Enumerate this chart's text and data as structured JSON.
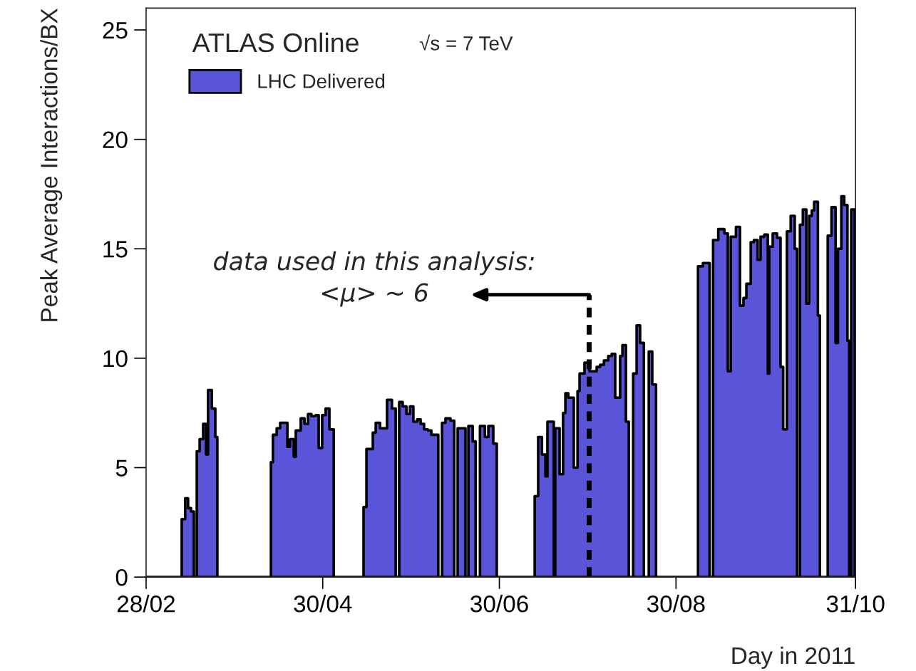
{
  "chart_data": {
    "type": "area",
    "title": "ATLAS Online",
    "subtitle": "√s = 7 TeV",
    "xlabel": "Day in 2011",
    "ylabel": "Peak Average Interactions/BX",
    "x": [
      "2011-02-28",
      "2011-03-12T07:12",
      "2011-03-13T12:00",
      "2011-03-14T12:00",
      "2011-03-15T12:00",
      "2011-03-16T12:00",
      "2011-03-17T12:00",
      "2011-03-18T12:00",
      "2011-03-19T16:48",
      "2011-03-20T16:48",
      "2011-03-21T09:36",
      "2011-03-22T16:48",
      "2011-03-23T21:36",
      "2011-03-24T14:24",
      "2011-04-12T02:24",
      "2011-04-12T19:12",
      "2011-04-14T02:24",
      "2011-04-15T07:12",
      "2011-04-17T19:12",
      "2011-04-18T16:48",
      "2011-04-20",
      "2011-04-20T16:48",
      "2011-04-22T09:36",
      "2011-04-23T16:48",
      "2011-04-24T21:36",
      "2011-04-26T02:24",
      "2011-04-27T14:24",
      "2011-04-28T14:24",
      "2011-04-29T19:12",
      "2011-05-01",
      "2011-05-02T07:12",
      "2011-05-03T19:12",
      "2011-05-14T02:24",
      "2011-05-15T02:24",
      "2011-05-17T07:12",
      "2011-05-18T07:12",
      "2011-05-19T19:12",
      "2011-05-22T04:48",
      "2011-05-23T21:36",
      "2011-05-25T04:48",
      "2011-05-26T09:36",
      "2011-05-27T14:24",
      "2011-05-28T21:36",
      "2011-05-30T02:24",
      "2011-05-31T07:12",
      "2011-06-01T14:24",
      "2011-06-02T19:12",
      "2011-06-04",
      "2011-06-05T07:12",
      "2011-06-06T12:00",
      "2011-06-08T21:36",
      "2011-06-10T04:48",
      "2011-06-11T09:36",
      "2011-06-13T02:24",
      "2011-06-14T09:36",
      "2011-06-15T14:24",
      "2011-06-18T07:12",
      "2011-06-19T07:12",
      "2011-06-20T19:12",
      "2011-06-21T19:12",
      "2011-06-23T07:12",
      "2011-06-25",
      "2011-06-26T04:48",
      "2011-06-27T21:36",
      "2011-06-29T02:24",
      "2011-07-12T04:48",
      "2011-07-13T09:36",
      "2011-07-14T16:48",
      "2011-07-15T21:36",
      "2011-07-16T14:24",
      "2011-07-18T19:12",
      "2011-07-19T07:12",
      "2011-07-20T19:12",
      "2011-07-22",
      "2011-07-22T19:12",
      "2011-07-23T19:12",
      "2011-07-25T16:48",
      "2011-07-27",
      "2011-07-27T16:48",
      "2011-07-29T09:36",
      "2011-07-31T02:24",
      "2011-08-02T14:24",
      "2011-08-03T19:12",
      "2011-08-05T02:24",
      "2011-08-06T14:24",
      "2011-08-07T19:12",
      "2011-08-09",
      "2011-08-10T16:48",
      "2011-08-11T12:00",
      "2011-08-12T16:48",
      "2011-08-13T16:48",
      "2011-08-15T04:48",
      "2011-08-16T09:36",
      "2011-08-17T14:24",
      "2011-08-18T21:36",
      "2011-08-20T14:24",
      "2011-08-21T19:12",
      "2011-08-23T02:24",
      "2011-09-06T14:24",
      "2011-09-08T07:12",
      "2011-09-10T14:24",
      "2011-09-11T19:12",
      "2011-09-13T14:24",
      "2011-09-15T16:48",
      "2011-09-16T21:36",
      "2011-09-17T21:36",
      "2011-09-19T16:48",
      "2011-09-21T02:24",
      "2011-09-22T07:12",
      "2011-09-23T07:12",
      "2011-09-24T19:12",
      "2011-09-25T21:36",
      "2011-09-27T04:48",
      "2011-09-28T04:48",
      "2011-09-29T12:00",
      "2011-09-30T16:48",
      "2011-10-01T04:48",
      "2011-10-02T09:36",
      "2011-10-03T21:36",
      "2011-10-05T02:24",
      "2011-10-06",
      "2011-10-07T07:12",
      "2011-10-08T14:24",
      "2011-10-10",
      "2011-10-10T19:12",
      "2011-10-11T19:12",
      "2011-10-12T19:12",
      "2011-10-14",
      "2011-10-15",
      "2011-10-15T21:36",
      "2011-10-16T16:48",
      "2011-10-18",
      "2011-10-18T16:48",
      "2011-10-21T09:36",
      "2011-10-22T16:48",
      "2011-10-24T02:24",
      "2011-10-24T21:36",
      "2011-10-26T02:24",
      "2011-10-27T02:24",
      "2011-10-28T04:48",
      "2011-10-28T19:12",
      "2011-10-29T12:00",
      "2011-10-30T16:48"
    ],
    "series": [
      {
        "name": "LHC Delivered",
        "color": "#5a55d8",
        "values": [
          0,
          2.65,
          3.6,
          3.15,
          3.0,
          0,
          5.75,
          6.3,
          7.0,
          5.6,
          8.55,
          7.7,
          6.4,
          0,
          5.25,
          6.5,
          6.8,
          7.05,
          5.95,
          6.3,
          5.5,
          6.7,
          7.25,
          7.0,
          7.45,
          7.35,
          7.4,
          5.9,
          7.4,
          7.7,
          6.75,
          0,
          3.2,
          5.85,
          6.6,
          7.05,
          6.8,
          8.1,
          7.7,
          0,
          8.0,
          7.8,
          7.45,
          7.8,
          7.1,
          7.2,
          7.0,
          6.75,
          6.7,
          6.5,
          0,
          7.05,
          7.25,
          7.15,
          0,
          6.8,
          0,
          6.9,
          6.2,
          0,
          6.9,
          6.4,
          6.9,
          6.1,
          0,
          3.7,
          6.4,
          5.6,
          4.6,
          7.1,
          0,
          6.8,
          4.7,
          7.5,
          8.4,
          8.2,
          5.0,
          8.5,
          9.3,
          9.8,
          9.4,
          9.6,
          9.7,
          9.9,
          10.1,
          10.2,
          8.2,
          10.1,
          10.6,
          7.1,
          0,
          9.3,
          11.5,
          10.7,
          0,
          10.3,
          8.8,
          0,
          14.2,
          14.35,
          0,
          15.4,
          15.9,
          15.7,
          9.4,
          15.55,
          16.0,
          12.4,
          12.75,
          13.4,
          15.3,
          15.4,
          14.5,
          15.55,
          15.65,
          9.3,
          15.1,
          15.7,
          15.5,
          9.6,
          6.75,
          15.8,
          16.5,
          15.0,
          0,
          16.1,
          16.8,
          12.5,
          16.5,
          16.75,
          17.15,
          11.95,
          0,
          15.6,
          16.9,
          10.7,
          15.0,
          17.4,
          17.0,
          10.8,
          0,
          16.8,
          0
        ]
      }
    ],
    "xlim": [
      "2011-02-28",
      "2011-10-31"
    ],
    "xticks": [
      {
        "value": "2011-02-28",
        "label": "28/02"
      },
      {
        "value": "2011-04-30",
        "label": "30/04"
      },
      {
        "value": "2011-06-30",
        "label": "30/06"
      },
      {
        "value": "2011-08-30",
        "label": "30/08"
      },
      {
        "value": "2011-10-31",
        "label": "31/10"
      }
    ],
    "ylim": [
      0,
      26
    ],
    "yticks": [
      0,
      5,
      10,
      15,
      20,
      25
    ],
    "legend": "top left",
    "ref_lines": [
      {
        "axis": "x",
        "value": "2011-07-31",
        "line_style": "dashed"
      }
    ],
    "annotations": [
      {
        "text": "data used in this analysis:\n<μ> ~ 6",
        "x": "2011-07-31",
        "y": 12.9
      }
    ]
  }
}
